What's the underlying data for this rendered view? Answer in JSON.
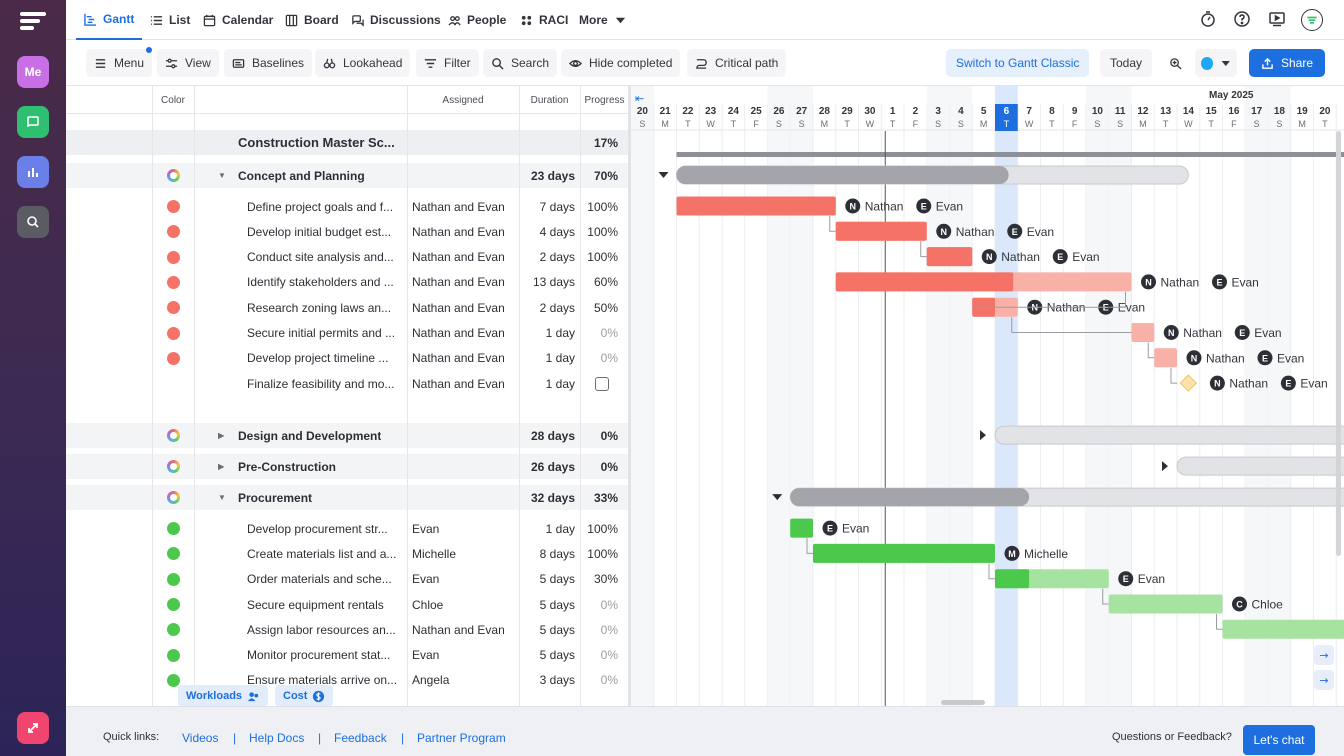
{
  "rail": {
    "me_label": "Me"
  },
  "nav": {
    "tabs": [
      {
        "label": "Gantt",
        "icon": "gantt-icon",
        "active": true
      },
      {
        "label": "List",
        "icon": "list-icon"
      },
      {
        "label": "Calendar",
        "icon": "calendar-icon"
      },
      {
        "label": "Board",
        "icon": "board-icon"
      },
      {
        "label": "Discussions",
        "icon": "discussions-icon"
      },
      {
        "label": "People",
        "icon": "people-icon"
      },
      {
        "label": "RACI",
        "icon": "raci-icon"
      },
      {
        "label": "More",
        "icon": "chevron-down-icon"
      }
    ]
  },
  "toolbar": {
    "menu": "Menu",
    "view": "View",
    "baselines": "Baselines",
    "lookahead": "Lookahead",
    "filter": "Filter",
    "search": "Search",
    "hide_completed": "Hide completed",
    "critical_path": "Critical path",
    "switch_classic": "Switch to Gantt Classic",
    "today": "Today",
    "share": "Share"
  },
  "grid": {
    "headers": {
      "color": "Color",
      "assigned": "Assigned",
      "duration": "Duration",
      "progress": "Progress"
    },
    "rows": [
      {
        "type": "project",
        "name": "Construction Master Sc...",
        "assigned": "",
        "duration": "",
        "progress": "17%"
      },
      {
        "type": "group",
        "expanded": true,
        "name": "Concept and Planning",
        "assigned": "",
        "duration": "23 days",
        "progress": "70%"
      },
      {
        "type": "task",
        "color": "#f47366",
        "name": "Define project goals and f...",
        "assigned": "Nathan and Evan",
        "duration": "7 days",
        "progress": "100%"
      },
      {
        "type": "task",
        "color": "#f47366",
        "name": "Develop initial budget est...",
        "assigned": "Nathan and Evan",
        "duration": "4 days",
        "progress": "100%"
      },
      {
        "type": "task",
        "color": "#f47366",
        "name": "Conduct site analysis and...",
        "assigned": "Nathan and Evan",
        "duration": "2 days",
        "progress": "100%"
      },
      {
        "type": "task",
        "color": "#f47366",
        "name": "Identify stakeholders and ...",
        "assigned": "Nathan and Evan",
        "duration": "13 days",
        "progress": "60%"
      },
      {
        "type": "task",
        "color": "#f47366",
        "name": "Research zoning laws an...",
        "assigned": "Nathan and Evan",
        "duration": "2 days",
        "progress": "50%"
      },
      {
        "type": "task",
        "color": "#f47366",
        "name": "Secure initial permits and ...",
        "assigned": "Nathan and Evan",
        "duration": "1 day",
        "progress": "0%"
      },
      {
        "type": "task",
        "color": "#f47366",
        "name": "Develop project timeline ...",
        "assigned": "Nathan and Evan",
        "duration": "1 day",
        "progress": "0%"
      },
      {
        "type": "milestone",
        "color": "",
        "name": "Finalize feasibility and mo...",
        "assigned": "Nathan and Evan",
        "duration": "1 day",
        "progress": "checkbox"
      },
      {
        "type": "group",
        "expanded": false,
        "name": "Design and Development",
        "assigned": "",
        "duration": "28 days",
        "progress": "0%"
      },
      {
        "type": "group",
        "expanded": false,
        "name": "Pre-Construction",
        "assigned": "",
        "duration": "26 days",
        "progress": "0%"
      },
      {
        "type": "group",
        "expanded": true,
        "name": "Procurement",
        "assigned": "",
        "duration": "32 days",
        "progress": "33%"
      },
      {
        "type": "task",
        "color": "#4cc94c",
        "name": "Develop procurement str...",
        "assigned": "Evan",
        "duration": "1 day",
        "progress": "100%"
      },
      {
        "type": "task",
        "color": "#4cc94c",
        "name": "Create materials list and a...",
        "assigned": "Michelle",
        "duration": "8 days",
        "progress": "100%"
      },
      {
        "type": "task",
        "color": "#4cc94c",
        "name": "Order materials and sche...",
        "assigned": "Evan",
        "duration": "5 days",
        "progress": "30%"
      },
      {
        "type": "task",
        "color": "#4cc94c",
        "name": "Secure equipment rentals",
        "assigned": "Chloe",
        "duration": "5 days",
        "progress": "0%"
      },
      {
        "type": "task",
        "color": "#4cc94c",
        "name": "Assign labor resources an...",
        "assigned": "Nathan and Evan",
        "duration": "5 days",
        "progress": "0%"
      },
      {
        "type": "task",
        "color": "#4cc94c",
        "name": "Monitor procurement stat...",
        "assigned": "Evan",
        "duration": "5 days",
        "progress": "0%"
      },
      {
        "type": "task",
        "color": "#4cc94c",
        "name": "Ensure materials arrive on...",
        "assigned": "Angela",
        "duration": "3 days",
        "progress": "0%"
      }
    ]
  },
  "timeline": {
    "month_label": "May 2025",
    "days": [
      {
        "d": "20",
        "w": "S"
      },
      {
        "d": "21",
        "w": "M"
      },
      {
        "d": "22",
        "w": "T"
      },
      {
        "d": "23",
        "w": "W"
      },
      {
        "d": "24",
        "w": "T"
      },
      {
        "d": "25",
        "w": "F"
      },
      {
        "d": "26",
        "w": "S"
      },
      {
        "d": "27",
        "w": "S"
      },
      {
        "d": "28",
        "w": "M"
      },
      {
        "d": "29",
        "w": "T"
      },
      {
        "d": "30",
        "w": "W"
      },
      {
        "d": "1",
        "w": "T"
      },
      {
        "d": "2",
        "w": "F"
      },
      {
        "d": "3",
        "w": "S"
      },
      {
        "d": "4",
        "w": "S"
      },
      {
        "d": "5",
        "w": "M"
      },
      {
        "d": "6",
        "w": "T",
        "today": true
      },
      {
        "d": "7",
        "w": "W"
      },
      {
        "d": "8",
        "w": "T"
      },
      {
        "d": "9",
        "w": "F"
      },
      {
        "d": "10",
        "w": "S"
      },
      {
        "d": "11",
        "w": "S"
      },
      {
        "d": "12",
        "w": "M"
      },
      {
        "d": "13",
        "w": "T"
      },
      {
        "d": "14",
        "w": "W"
      },
      {
        "d": "15",
        "w": "T"
      },
      {
        "d": "16",
        "w": "F"
      },
      {
        "d": "17",
        "w": "S"
      },
      {
        "d": "18",
        "w": "S"
      },
      {
        "d": "19",
        "w": "M"
      },
      {
        "d": "20",
        "w": "T"
      }
    ],
    "bars": [
      {
        "row": 1,
        "start": 2,
        "end": 24.5,
        "done": 16.6,
        "kind": "group"
      },
      {
        "row": 2,
        "start": 2,
        "end": 9,
        "done": 9,
        "kind": "red",
        "assignees": [
          "Nathan",
          "Evan"
        ]
      },
      {
        "row": 3,
        "start": 9,
        "end": 13,
        "done": 13,
        "kind": "red",
        "assignees": [
          "Nathan",
          "Evan"
        ]
      },
      {
        "row": 4,
        "start": 13,
        "end": 15,
        "done": 15,
        "kind": "red",
        "assignees": [
          "Nathan",
          "Evan"
        ]
      },
      {
        "row": 5,
        "start": 9,
        "end": 22,
        "done": 16.8,
        "kind": "red",
        "assignees": [
          "Nathan",
          "Evan"
        ]
      },
      {
        "row": 6,
        "start": 15,
        "end": 17,
        "done": 16,
        "kind": "red",
        "assignees": [
          "Nathan",
          "Evan"
        ]
      },
      {
        "row": 7,
        "start": 22,
        "end": 23,
        "done": 22,
        "kind": "red",
        "assignees": [
          "Nathan",
          "Evan"
        ]
      },
      {
        "row": 8,
        "start": 23,
        "end": 24,
        "done": 23,
        "kind": "red",
        "assignees": [
          "Nathan",
          "Evan"
        ]
      },
      {
        "row": 9,
        "start": 24,
        "end": 24,
        "done": 24,
        "kind": "milestone",
        "assignees": [
          "Nathan",
          "Evan"
        ]
      },
      {
        "row": 10,
        "start": 16,
        "end": 32,
        "done": 16,
        "kind": "group"
      },
      {
        "row": 11,
        "start": 24,
        "end": 32,
        "done": 24,
        "kind": "group"
      },
      {
        "row": 12,
        "start": 7,
        "end": 32,
        "done": 17.5,
        "kind": "group"
      },
      {
        "row": 13,
        "start": 7,
        "end": 8,
        "done": 8,
        "kind": "green",
        "assignees": [
          "Evan"
        ]
      },
      {
        "row": 14,
        "start": 8,
        "end": 16,
        "done": 16,
        "kind": "green",
        "assignees": [
          "Michelle"
        ]
      },
      {
        "row": 15,
        "start": 16,
        "end": 21,
        "done": 17.5,
        "kind": "green",
        "assignees": [
          "Evan"
        ]
      },
      {
        "row": 16,
        "start": 21,
        "end": 26,
        "done": 21,
        "kind": "green",
        "assignees": [
          "Chloe"
        ]
      },
      {
        "row": 17,
        "start": 26,
        "end": 32,
        "done": 26,
        "kind": "green",
        "assignees": []
      }
    ]
  },
  "footer": {
    "quick_links_label": "Quick links:",
    "links": [
      "Videos",
      "Help Docs",
      "Feedback",
      "Partner Program"
    ],
    "question": "Questions or Feedback?",
    "chat": "Let's chat",
    "workloads": "Workloads",
    "cost": "Cost"
  }
}
